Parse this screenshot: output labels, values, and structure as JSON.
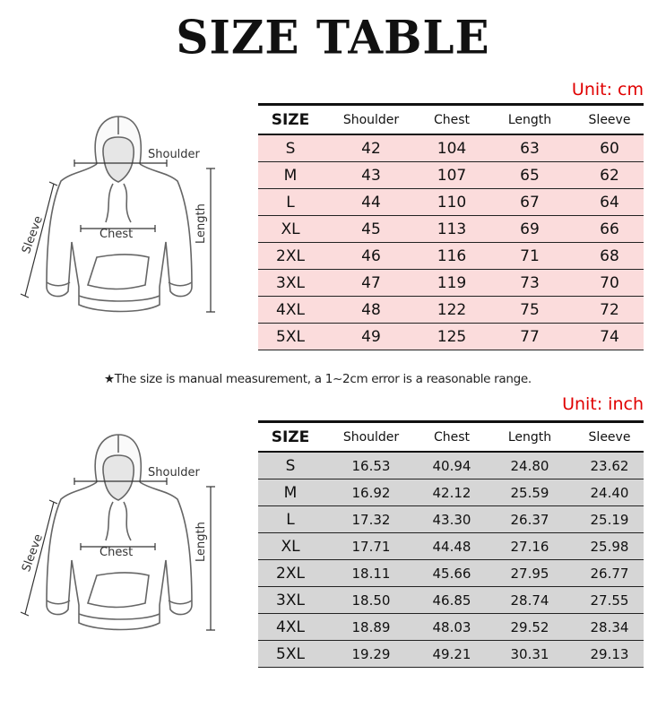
{
  "title": "SIZE TABLE",
  "note": "★The size is manual measurement, a 1~2cm error is a reasonable range.",
  "diagram": {
    "shoulder": "Shoulder",
    "chest": "Chest",
    "length": "Length",
    "sleeve": "Sleeve"
  },
  "columns": [
    "SIZE",
    "Shoulder",
    "Chest",
    "Length",
    "Sleeve"
  ],
  "cm_table": {
    "unit": "Unit: cm",
    "rows": [
      [
        "S",
        "42",
        "104",
        "63",
        "60"
      ],
      [
        "M",
        "43",
        "107",
        "65",
        "62"
      ],
      [
        "L",
        "44",
        "110",
        "67",
        "64"
      ],
      [
        "XL",
        "45",
        "113",
        "69",
        "66"
      ],
      [
        "2XL",
        "46",
        "116",
        "71",
        "68"
      ],
      [
        "3XL",
        "47",
        "119",
        "73",
        "70"
      ],
      [
        "4XL",
        "48",
        "122",
        "75",
        "72"
      ],
      [
        "5XL",
        "49",
        "125",
        "77",
        "74"
      ]
    ]
  },
  "inch_table": {
    "unit": "Unit: inch",
    "rows": [
      [
        "S",
        "16.53",
        "40.94",
        "24.80",
        "23.62"
      ],
      [
        "M",
        "16.92",
        "42.12",
        "25.59",
        "24.40"
      ],
      [
        "L",
        "17.32",
        "43.30",
        "26.37",
        "25.19"
      ],
      [
        "XL",
        "17.71",
        "44.48",
        "27.16",
        "25.98"
      ],
      [
        "2XL",
        "18.11",
        "45.66",
        "27.95",
        "26.77"
      ],
      [
        "3XL",
        "18.50",
        "46.85",
        "28.74",
        "27.55"
      ],
      [
        "4XL",
        "18.89",
        "48.03",
        "29.52",
        "28.34"
      ],
      [
        "5XL",
        "19.29",
        "49.21",
        "30.31",
        "29.13"
      ]
    ]
  },
  "colors": {
    "unit": "#e00000",
    "cm_row": "#fbdcdc",
    "inch_row": "#d6d6d6"
  }
}
